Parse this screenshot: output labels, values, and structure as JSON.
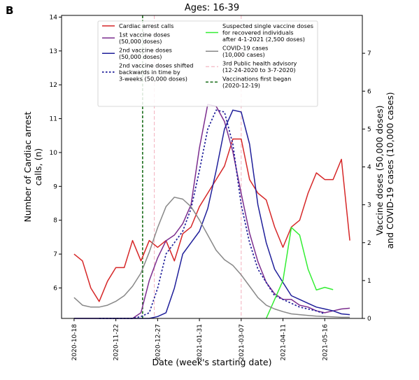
{
  "panel_label": "B",
  "chart_data": {
    "type": "line",
    "title": "Ages: 16-39",
    "xlabel": "Date (week's starting date)",
    "ylabel_left": "Number of Cardiac arrest calls, (n)",
    "ylabel_right_line1": "Vaccine doses (50,000 doses)",
    "ylabel_right_line2": "and COVID-19 cases (10,000 cases)",
    "x_tick_labels": [
      "2020-10-18",
      "2020-11-22",
      "2020-12-27",
      "2021-01-31",
      "2021-03-07",
      "2021-04-11",
      "2021-05-16"
    ],
    "x_tick_weeks": [
      0,
      5,
      10,
      15,
      20,
      25,
      30
    ],
    "xlim": [
      -1.5,
      34.5
    ],
    "ylim_left": [
      5.1,
      14.05
    ],
    "y_ticks_left": [
      6,
      7,
      8,
      9,
      10,
      11,
      12,
      13,
      14
    ],
    "ylim_right": [
      0,
      8
    ],
    "y_ticks_right": [
      0,
      1,
      2,
      3,
      4,
      5,
      6,
      7
    ],
    "grid": false,
    "legend_position": "top-center",
    "series": [
      {
        "name": "Cardiac arrest calls",
        "axis": "left",
        "color": "#d62728",
        "dash": "",
        "x": [
          0,
          1,
          2,
          3,
          4,
          5,
          6,
          7,
          8,
          9,
          10,
          11,
          12,
          13,
          14,
          15,
          16,
          17,
          18,
          19,
          20,
          21,
          22,
          23,
          24,
          25,
          26,
          27,
          28,
          29,
          30,
          31,
          32,
          33
        ],
        "values": [
          7.0,
          6.8,
          6.0,
          5.6,
          6.2,
          6.6,
          6.6,
          7.4,
          6.8,
          7.4,
          7.2,
          7.4,
          6.8,
          7.6,
          7.8,
          8.4,
          8.8,
          9.2,
          9.6,
          10.4,
          10.4,
          9.2,
          8.8,
          8.6,
          7.8,
          7.2,
          7.8,
          8.0,
          8.8,
          9.4,
          9.2,
          9.2,
          9.8,
          7.4
        ]
      },
      {
        "name": "1st vaccine doses\n(50,000 doses)",
        "axis": "right",
        "color": "#7b2d8e",
        "dash": "",
        "x": [
          0,
          1,
          2,
          3,
          4,
          5,
          6,
          7,
          8,
          9,
          10,
          11,
          12,
          13,
          14,
          15,
          16,
          17,
          18,
          19,
          20,
          21,
          22,
          23,
          24,
          25,
          26,
          27,
          28,
          29,
          30,
          31,
          32,
          33
        ],
        "values": [
          0,
          0,
          0,
          0,
          0,
          0,
          0,
          0,
          0.15,
          1.0,
          1.6,
          2.05,
          2.2,
          2.5,
          3.0,
          4.5,
          5.65,
          5.6,
          5.2,
          4.4,
          3.3,
          2.25,
          1.5,
          0.95,
          0.65,
          0.5,
          0.5,
          0.35,
          0.3,
          0.2,
          0.15,
          0.2,
          0.25,
          0.27
        ]
      },
      {
        "name": "2nd vaccine doses\n(50,000 doses)",
        "axis": "right",
        "color": "#1f1f9a",
        "dash": "",
        "x": [
          0,
          1,
          2,
          3,
          4,
          5,
          6,
          7,
          8,
          9,
          10,
          11,
          12,
          13,
          14,
          15,
          16,
          17,
          18,
          19,
          20,
          21,
          22,
          23,
          24,
          25,
          26,
          27,
          28,
          29,
          30,
          31,
          32,
          33
        ],
        "values": [
          0,
          0,
          0,
          0,
          0,
          0,
          0,
          0,
          0,
          0,
          0.05,
          0.15,
          0.8,
          1.7,
          2.0,
          2.3,
          2.9,
          3.9,
          5.0,
          5.5,
          5.45,
          4.6,
          3.0,
          2.0,
          1.3,
          0.95,
          0.6,
          0.5,
          0.4,
          0.3,
          0.25,
          0.2,
          0.12,
          0.1
        ]
      },
      {
        "name": "2nd vaccine doses shifted\nbackwards in time by\n3-weeks (50,000 doses)",
        "axis": "right",
        "color": "#1f1f9a",
        "dash": "2.5,2.5",
        "x": [
          6,
          7,
          8,
          9,
          10,
          11,
          12,
          13,
          14,
          15,
          16,
          17,
          18,
          19,
          20,
          21,
          22,
          23,
          24,
          25,
          26,
          27,
          28,
          29,
          30,
          31,
          32,
          33
        ],
        "values": [
          0,
          0,
          0,
          0,
          0,
          0.05,
          0.15,
          0.8,
          1.7,
          2.0,
          2.3,
          2.9,
          3.9,
          5.0,
          5.5,
          5.45,
          4.6,
          3.0,
          2.0,
          1.3,
          0.95,
          0.6,
          0.5,
          0.4,
          0.3,
          0.25,
          0.2,
          0.12
        ],
        "x_shift": -3
      },
      {
        "name": "Suspected single vaccine doses\nfor recovered individuals\nafter 4-1-2021 (2,500 doses)",
        "axis": "right",
        "color": "#33ee33",
        "dash": "",
        "x": [
          23,
          24,
          25,
          26,
          27,
          28,
          29,
          30,
          31
        ],
        "values": [
          0,
          0.5,
          1.0,
          2.4,
          2.2,
          1.3,
          0.75,
          0.82,
          0.76
        ]
      },
      {
        "name": "COVID-19 cases\n(10,000 cases)",
        "axis": "right",
        "color": "#888888",
        "dash": "",
        "x": [
          0,
          1,
          2,
          3,
          4,
          5,
          6,
          7,
          8,
          9,
          10,
          11,
          12,
          13,
          14,
          15,
          16,
          17,
          18,
          19,
          20,
          21,
          22,
          23,
          24,
          25,
          26,
          27,
          28,
          29,
          30,
          31,
          32,
          33
        ],
        "values": [
          0.55,
          0.35,
          0.3,
          0.3,
          0.35,
          0.45,
          0.6,
          0.85,
          1.2,
          1.75,
          2.4,
          2.95,
          3.2,
          3.15,
          2.95,
          2.6,
          2.2,
          1.8,
          1.55,
          1.4,
          1.15,
          0.85,
          0.55,
          0.35,
          0.25,
          0.18,
          0.12,
          0.1,
          0.08,
          0.06,
          0.05,
          0.04,
          0.03,
          0.03
        ]
      }
    ],
    "reference_lines": [
      {
        "name": "3rd Public health advisory\n(12-24-2020 to 3-7-2020)",
        "color": "#f4b6c2",
        "dash": "5,3",
        "x": [
          9.6,
          20.0
        ]
      },
      {
        "name": "Vaccinations first began\n(2020-12-19)",
        "color": "#1a6e1a",
        "dash": "4,2.5",
        "x": [
          8.2
        ]
      }
    ]
  }
}
